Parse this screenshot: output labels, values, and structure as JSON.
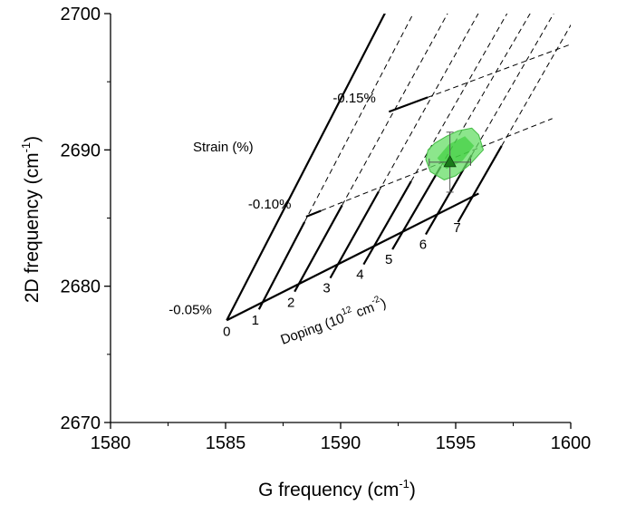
{
  "chart_data": {
    "type": "scatter",
    "title": "",
    "xlabel_main": "G frequency (cm",
    "xlabel_sup": "-1",
    "xlabel_end": ")",
    "ylabel_main": "2D frequency (cm",
    "ylabel_sup": "-1",
    "ylabel_end": ")",
    "xlim": [
      1580,
      1600
    ],
    "ylim": [
      2670,
      2700
    ],
    "x_ticks": [
      "1580",
      "1585",
      "1590",
      "1595",
      "1600"
    ],
    "y_ticks": [
      "2670",
      "2680",
      "2690",
      "2700"
    ],
    "x_tick_values": [
      1580,
      1585,
      1590,
      1595,
      1600
    ],
    "y_tick_values": [
      2670,
      2680,
      2690,
      2700
    ],
    "grid": false,
    "strain_label": "Strain (%)",
    "doping_label_main": "Doping (10",
    "doping_label_sup": "12",
    "doping_label_mid": " cm",
    "doping_label_sup2": "-2",
    "doping_label_end": ")",
    "strain_lines": [
      {
        "label": "-0.05%",
        "x": [
          1585.05,
          1596.0
        ],
        "y": [
          2677.5,
          2686.8
        ]
      },
      {
        "label": "-0.10%",
        "x": [
          1588.5,
          1599.2
        ],
        "y": [
          2685.1,
          2692.3
        ]
      },
      {
        "label": "-0.15%",
        "x": [
          1592.1,
          1602.0
        ],
        "y": [
          2692.8,
          2699.0
        ]
      }
    ],
    "doping_lines": [
      {
        "label": "0",
        "x": [
          1585.05,
          1592.1
        ],
        "y": [
          2677.5,
          2700.6
        ]
      },
      {
        "label": "1",
        "x": [
          1586.45,
          1594.7
        ],
        "y": [
          2678.3,
          2705.0
        ]
      },
      {
        "label": "2",
        "x": [
          1588.0,
          1596.6
        ],
        "y": [
          2679.6,
          2706.0
        ]
      },
      {
        "label": "3",
        "x": [
          1589.55,
          1598.3
        ],
        "y": [
          2680.6,
          2707.0
        ]
      },
      {
        "label": "4",
        "x": [
          1591.0,
          1599.6
        ],
        "y": [
          2681.6,
          2707.0
        ]
      },
      {
        "label": "5",
        "x": [
          1592.25,
          1601.0
        ],
        "y": [
          2682.7,
          2708.0
        ]
      },
      {
        "label": "6",
        "x": [
          1593.7,
          1602.0
        ],
        "y": [
          2683.8,
          2708.0
        ]
      },
      {
        "label": "7",
        "x": [
          1595.1,
          1603.0
        ],
        "y": [
          2684.7,
          2708.0
        ]
      }
    ],
    "measurement": {
      "x": 1594.75,
      "y": 2689.1,
      "x_err": 0.9,
      "y_err": 2.2
    },
    "cloud_color": "#66dd66",
    "marker_color": "#1a7a1a"
  }
}
